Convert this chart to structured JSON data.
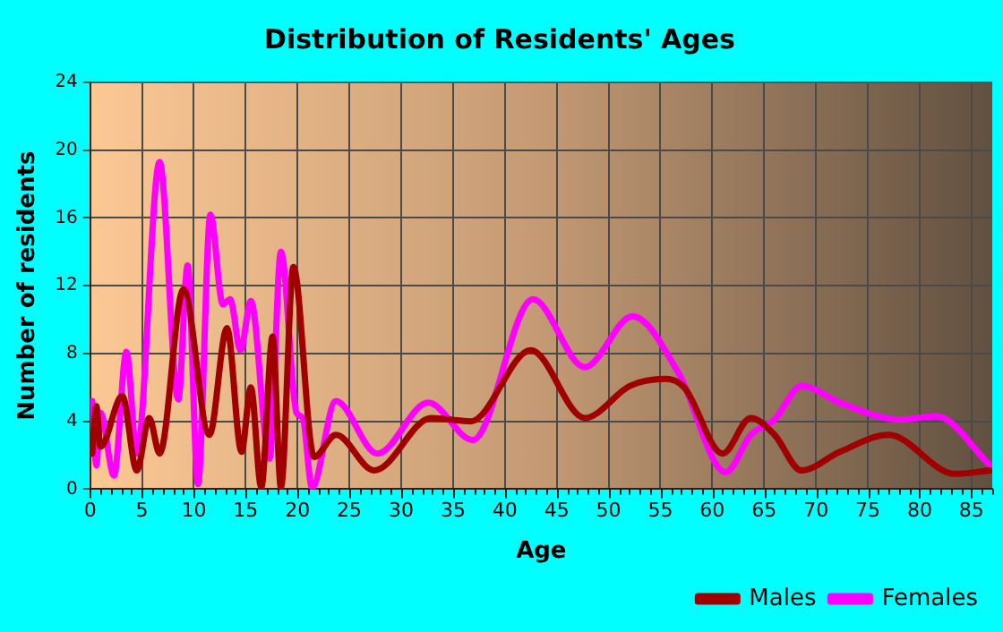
{
  "chart_data": {
    "type": "line",
    "title": "Distribution of Residents' Ages",
    "xlabel": "Age",
    "ylabel": "Number of residents",
    "xlim": [
      0,
      87
    ],
    "xticks": [
      0,
      5,
      10,
      15,
      20,
      25,
      30,
      35,
      40,
      45,
      50,
      55,
      60,
      65,
      70,
      75,
      80,
      85
    ],
    "ylim": [
      0,
      24
    ],
    "yticks": [
      0,
      4,
      8,
      12,
      16,
      20,
      24
    ],
    "grid": true,
    "legend": "bottom right",
    "marker": "none",
    "line_style": "solid",
    "series": [
      {
        "name": "Males",
        "color": "#a00000",
        "x": [
          0.2,
          0.6,
          1.0,
          3.1,
          4.5,
          5.7,
          6.7,
          9.0,
          11.5,
          13.2,
          14.6,
          15.5,
          16.5,
          17.6,
          18.4,
          19.6,
          21.6,
          23.7,
          27.4,
          32.9,
          36.7,
          42.5,
          47.7,
          52.1,
          55.5,
          57.3,
          61.0,
          63.7,
          66.0,
          68.6,
          72.3,
          77.0,
          83.4,
          86.8
        ],
        "values": [
          2.1,
          4.9,
          2.5,
          5.5,
          1.1,
          4.2,
          2.1,
          11.8,
          3.2,
          9.5,
          2.2,
          6.0,
          0.1,
          9.0,
          0.1,
          13.1,
          1.9,
          3.2,
          1.1,
          4.2,
          4.0,
          8.2,
          4.2,
          6.1,
          6.5,
          6.0,
          2.1,
          4.2,
          3.2,
          1.1,
          2.2,
          3.2,
          0.9,
          1.1
        ]
      },
      {
        "name": "Females",
        "color": "#ff00ff",
        "x": [
          0.2,
          0.6,
          1.0,
          2.3,
          3.5,
          4.5,
          6.7,
          8.5,
          9.4,
          10.4,
          11.6,
          12.8,
          13.5,
          14.5,
          15.5,
          17.3,
          18.4,
          19.9,
          20.5,
          21.4,
          23.7,
          27.7,
          32.6,
          36.9,
          42.7,
          47.7,
          52.3,
          56.7,
          61.3,
          63.7,
          66.0,
          68.6,
          72.3,
          78.1,
          81.6,
          86.8
        ],
        "values": [
          5.2,
          1.4,
          4.5,
          0.8,
          8.1,
          2.1,
          19.3,
          5.3,
          13.2,
          0.3,
          16.2,
          10.9,
          11.2,
          8.2,
          11.1,
          1.8,
          14.0,
          4.5,
          4.2,
          0.1,
          5.2,
          2.1,
          5.1,
          2.9,
          11.2,
          7.2,
          10.2,
          6.9,
          1.0,
          3.2,
          4.1,
          6.1,
          5.1,
          4.1,
          4.3,
          1.4
        ]
      }
    ]
  }
}
